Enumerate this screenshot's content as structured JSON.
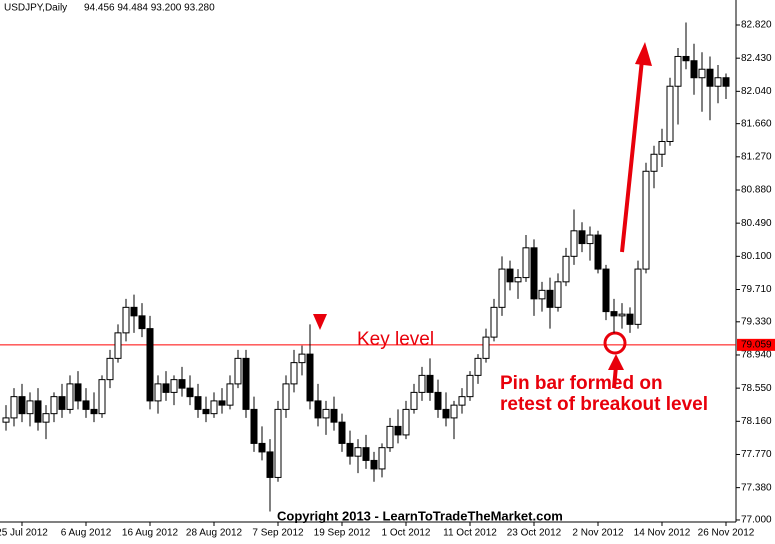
{
  "chart_data": {
    "type": "candlestick",
    "title": "USDJPY,Daily",
    "subtitle": "94.456 94.484 93.200 93.280",
    "categories": [
      null,
      null,
      "25 Jul 2012",
      null,
      null,
      null,
      null,
      null,
      null,
      null,
      "6 Aug 2012",
      null,
      null,
      null,
      null,
      null,
      null,
      null,
      "16 Aug 2012",
      null,
      null,
      null,
      null,
      null,
      null,
      null,
      "28 Aug 2012",
      null,
      null,
      null,
      null,
      null,
      null,
      null,
      "7 Sep 2012",
      null,
      null,
      null,
      null,
      null,
      null,
      null,
      "19 Sep 2012",
      null,
      null,
      null,
      null,
      null,
      null,
      null,
      "1 Oct 2012",
      null,
      null,
      null,
      null,
      null,
      null,
      null,
      "11 Oct 2012",
      null,
      null,
      null,
      null,
      null,
      null,
      null,
      "23 Oct 2012",
      null,
      null,
      null,
      null,
      null,
      null,
      null,
      "2 Nov 2012",
      null,
      null,
      null,
      null,
      null,
      null,
      null,
      "14 Nov 2012",
      null,
      null,
      null,
      null,
      null,
      null,
      null,
      "26 Nov 2012"
    ],
    "open": [
      78.15,
      78.2,
      78.45,
      78.25,
      78.4,
      78.15,
      78.25,
      78.45,
      78.3,
      78.6,
      78.4,
      78.3,
      78.25,
      78.65,
      78.9,
      79.2,
      79.5,
      79.4,
      79.25,
      78.4,
      78.6,
      78.5,
      78.65,
      78.55,
      78.45,
      78.3,
      78.25,
      78.4,
      78.35,
      78.6,
      78.9,
      78.3,
      77.9,
      77.8,
      77.5,
      78.3,
      78.6,
      78.85,
      78.95,
      78.4,
      78.2,
      78.3,
      78.15,
      77.9,
      77.75,
      77.85,
      77.7,
      77.6,
      77.85,
      78.1,
      78.0,
      78.3,
      78.5,
      78.7,
      78.5,
      78.3,
      78.2,
      78.35,
      78.45,
      78.7,
      78.9,
      79.15,
      79.5,
      79.95,
      79.8,
      79.85,
      80.2,
      79.6,
      79.7,
      79.5,
      79.8,
      80.1,
      80.4,
      80.25,
      80.35,
      79.95,
      79.45,
      79.4,
      79.42,
      79.3,
      79.95,
      81.1,
      81.3,
      81.45,
      82.1,
      82.45,
      82.4,
      82.2,
      82.3,
      82.1,
      82.2
    ],
    "high": [
      78.35,
      78.55,
      78.6,
      78.5,
      78.55,
      78.35,
      78.5,
      78.6,
      78.7,
      78.75,
      78.55,
      78.5,
      78.7,
      79.0,
      79.3,
      79.6,
      79.65,
      79.55,
      79.4,
      78.7,
      78.75,
      78.7,
      78.8,
      78.7,
      78.6,
      78.45,
      78.5,
      78.55,
      78.7,
      79.0,
      79.0,
      78.45,
      78.1,
      77.95,
      78.4,
      78.7,
      79.0,
      79.05,
      79.3,
      78.6,
      78.4,
      78.45,
      78.25,
      78.05,
      77.95,
      78.0,
      77.8,
      77.9,
      78.2,
      78.3,
      78.4,
      78.6,
      78.8,
      78.9,
      78.65,
      78.5,
      78.4,
      78.55,
      78.75,
      78.95,
      79.25,
      79.6,
      80.1,
      80.05,
      79.95,
      80.35,
      80.3,
      79.8,
      79.85,
      79.9,
      80.2,
      80.65,
      80.5,
      80.45,
      80.4,
      80.0,
      79.6,
      79.55,
      79.5,
      80.05,
      81.2,
      81.4,
      81.6,
      82.2,
      82.55,
      82.85,
      82.6,
      82.5,
      82.45,
      82.35,
      82.25
    ],
    "low": [
      78.05,
      78.1,
      78.15,
      78.1,
      78.05,
      77.95,
      78.15,
      78.2,
      78.25,
      78.3,
      78.2,
      78.15,
      78.2,
      78.55,
      78.85,
      79.1,
      79.2,
      79.15,
      78.3,
      78.25,
      78.4,
      78.35,
      78.45,
      78.35,
      78.2,
      78.15,
      78.2,
      78.25,
      78.3,
      78.55,
      78.2,
      77.8,
      77.7,
      77.1,
      77.45,
      78.2,
      78.5,
      78.7,
      78.3,
      78.1,
      78.0,
      78.05,
      77.8,
      77.65,
      77.55,
      77.6,
      77.45,
      77.5,
      77.8,
      77.9,
      77.95,
      78.25,
      78.4,
      78.4,
      78.2,
      78.1,
      77.95,
      78.25,
      78.4,
      78.6,
      78.85,
      79.1,
      79.4,
      79.7,
      79.6,
      79.8,
      79.4,
      79.45,
      79.25,
      79.45,
      79.75,
      80.0,
      80.15,
      80.05,
      79.9,
      79.35,
      79.2,
      79.25,
      79.2,
      79.25,
      79.9,
      80.9,
      81.15,
      81.4,
      81.65,
      82.3,
      82.0,
      81.8,
      81.7,
      81.9,
      81.95
    ],
    "close": [
      78.2,
      78.45,
      78.25,
      78.4,
      78.15,
      78.25,
      78.45,
      78.3,
      78.6,
      78.4,
      78.3,
      78.25,
      78.65,
      78.9,
      79.2,
      79.5,
      79.4,
      79.25,
      78.4,
      78.6,
      78.5,
      78.65,
      78.55,
      78.45,
      78.3,
      78.25,
      78.4,
      78.35,
      78.6,
      78.9,
      78.3,
      77.9,
      77.8,
      77.5,
      78.3,
      78.6,
      78.85,
      78.95,
      78.4,
      78.2,
      78.3,
      78.15,
      77.9,
      77.75,
      77.85,
      77.7,
      77.6,
      77.85,
      78.1,
      78.0,
      78.3,
      78.5,
      78.7,
      78.5,
      78.3,
      78.2,
      78.35,
      78.45,
      78.7,
      78.9,
      79.15,
      79.5,
      79.95,
      79.8,
      79.85,
      80.2,
      79.6,
      79.7,
      79.5,
      79.8,
      80.1,
      80.4,
      80.25,
      80.35,
      79.95,
      79.45,
      79.4,
      79.42,
      79.3,
      79.95,
      81.1,
      81.3,
      81.45,
      82.1,
      82.45,
      82.4,
      82.2,
      82.3,
      82.1,
      82.2,
      82.1
    ],
    "ylim": [
      76.976,
      83.114
    ],
    "yticks": [
      {
        "value": 82.82,
        "label": "82.820"
      },
      {
        "value": 82.43,
        "label": "82.430"
      },
      {
        "value": 82.04,
        "label": "82.040"
      },
      {
        "value": 81.66,
        "label": "81.660"
      },
      {
        "value": 81.27,
        "label": "81.270"
      },
      {
        "value": 80.88,
        "label": "80.880"
      },
      {
        "value": 80.49,
        "label": "80.490"
      },
      {
        "value": 80.1,
        "label": "80.100"
      },
      {
        "value": 79.71,
        "label": "79.710"
      },
      {
        "value": 79.33,
        "label": "79.330"
      },
      {
        "value": 78.94,
        "label": "78.940"
      },
      {
        "value": 78.55,
        "label": "78.550"
      },
      {
        "value": 78.16,
        "label": "78.160"
      },
      {
        "value": 77.77,
        "label": "77.770"
      },
      {
        "value": 77.38,
        "label": "77.380"
      },
      {
        "value": 77.0,
        "label": "77.000"
      }
    ],
    "reference_line": {
      "value": 79.059,
      "color": "#ff0000"
    },
    "annotations": [
      "Key level",
      "Pin bar formed on",
      "retest of breakout level"
    ],
    "footer": "Copyright 2013 - LearnToTradeTheMarket.com",
    "grid": false
  }
}
